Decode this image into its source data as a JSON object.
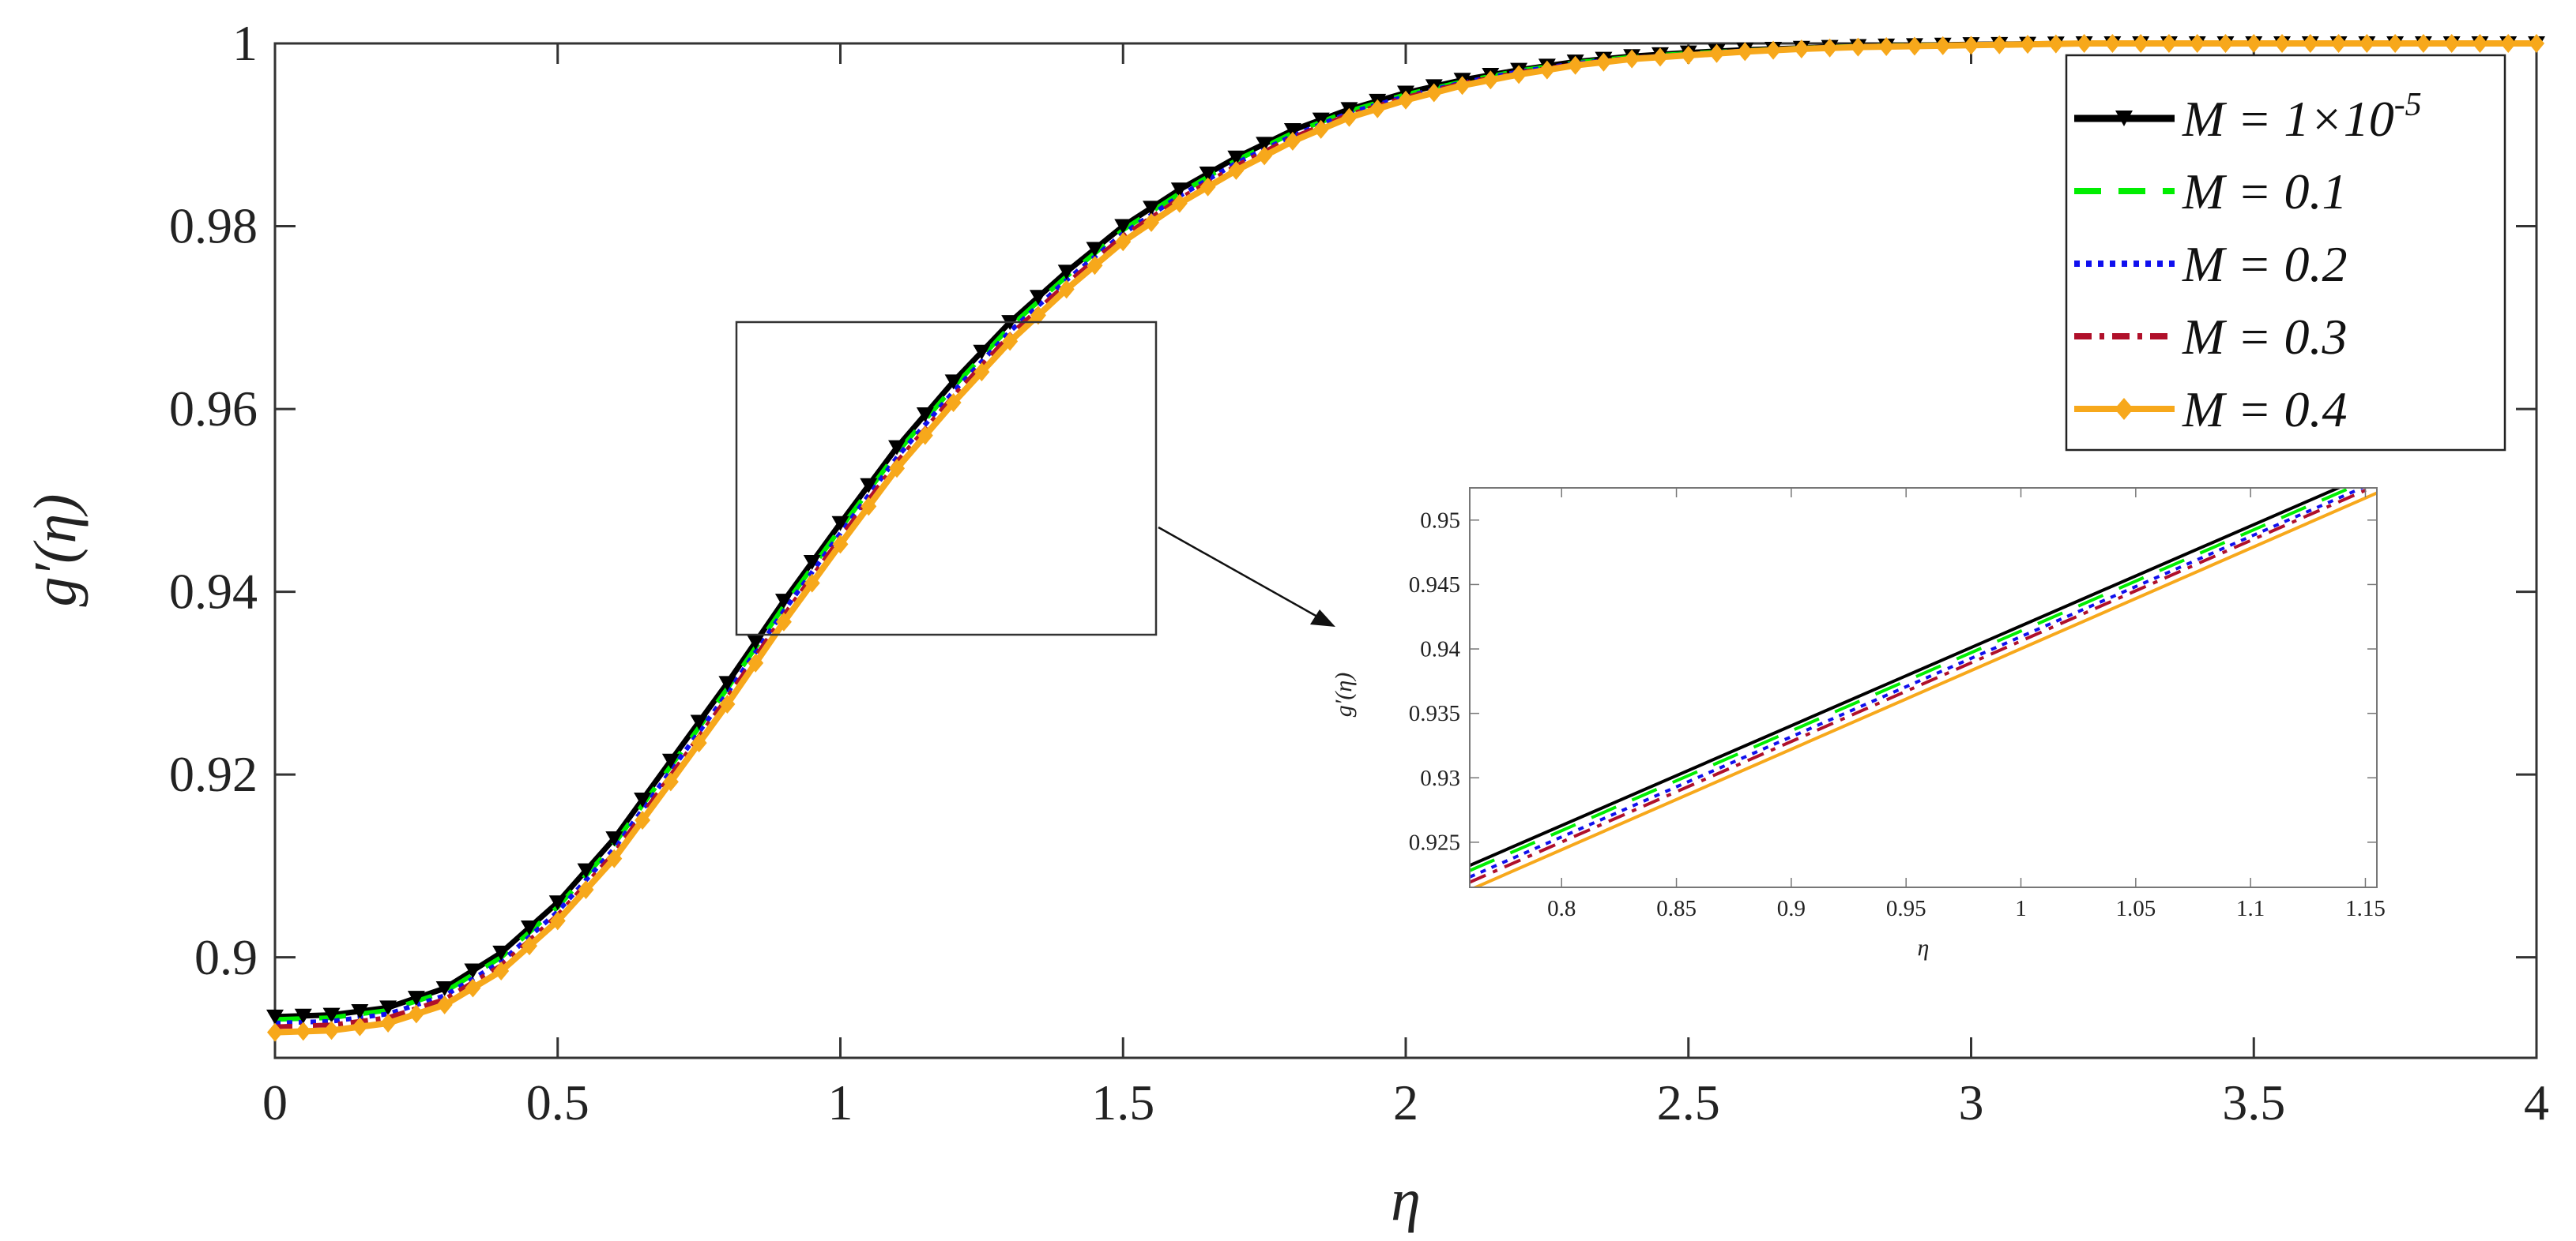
{
  "chart_data": [
    {
      "type": "line",
      "title": "",
      "xlabel": "η",
      "ylabel": "g′(η)",
      "xlim": [
        0,
        4
      ],
      "ylim": [
        0.889,
        1.0
      ],
      "x_ticks": [
        "0",
        "0.5",
        "1",
        "1.5",
        "2",
        "2.5",
        "3",
        "3.5",
        "4"
      ],
      "y_ticks": [
        "0.9",
        "0.92",
        "0.94",
        "0.96",
        "0.98",
        "1"
      ],
      "grid": false,
      "legend_position": "top-right",
      "x": [
        0,
        0.1,
        0.2,
        0.3,
        0.4,
        0.5,
        0.6,
        0.7,
        0.8,
        0.9,
        1.0,
        1.1,
        1.2,
        1.3,
        1.4,
        1.5,
        1.6,
        1.7,
        1.8,
        1.9,
        2.0,
        2.1,
        2.2,
        2.3,
        2.4,
        2.5,
        2.6,
        2.7,
        2.8,
        3.0,
        3.2,
        3.4,
        3.6,
        3.8,
        4.0
      ],
      "series": [
        {
          "name": "M = 1×10",
          "name_sup": "-5",
          "color": "#000000",
          "marker": "triangle-down",
          "values": [
            0.8935,
            0.8937,
            0.8945,
            0.8966,
            0.9005,
            0.906,
            0.913,
            0.9215,
            0.93,
            0.939,
            0.9475,
            0.9558,
            0.963,
            0.9695,
            0.975,
            0.98,
            0.984,
            0.9875,
            0.9905,
            0.9928,
            0.9946,
            0.996,
            0.9971,
            0.998,
            0.9986,
            0.999,
            0.9993,
            0.9995,
            0.9997,
            0.9999,
            1.0,
            1.0,
            1.0,
            1.0,
            1.0
          ]
        },
        {
          "name": "M = 0.1",
          "color": "#00ee00",
          "marker": "none",
          "values": [
            0.8932,
            0.8934,
            0.8942,
            0.8962,
            0.9,
            0.9055,
            0.9124,
            0.9209,
            0.9294,
            0.9384,
            0.9469,
            0.9552,
            0.9624,
            0.969,
            0.9745,
            0.9796,
            0.9836,
            0.9872,
            0.9902,
            0.9926,
            0.9944,
            0.9958,
            0.997,
            0.9979,
            0.9985,
            0.9989,
            0.9992,
            0.9995,
            0.9997,
            0.9999,
            1.0,
            1.0,
            1.0,
            1.0,
            1.0
          ]
        },
        {
          "name": "M = 0.2",
          "color": "#1010ee",
          "marker": "none",
          "values": [
            0.8928,
            0.893,
            0.8938,
            0.8958,
            0.8995,
            0.905,
            0.9119,
            0.9204,
            0.9289,
            0.9379,
            0.9464,
            0.9547,
            0.9619,
            0.9685,
            0.9741,
            0.9792,
            0.9833,
            0.9869,
            0.9899,
            0.9924,
            0.9942,
            0.9957,
            0.9969,
            0.9978,
            0.9984,
            0.9988,
            0.9992,
            0.9994,
            0.9996,
            0.9999,
            1.0,
            1.0,
            1.0,
            1.0,
            1.0
          ]
        },
        {
          "name": "M = 0.3",
          "color": "#b0102a",
          "marker": "none",
          "values": [
            0.8924,
            0.8926,
            0.8934,
            0.8954,
            0.8991,
            0.9046,
            0.9114,
            0.9199,
            0.9284,
            0.9374,
            0.9459,
            0.9542,
            0.9614,
            0.9681,
            0.9737,
            0.9789,
            0.983,
            0.9866,
            0.9897,
            0.9922,
            0.9941,
            0.9956,
            0.9968,
            0.9977,
            0.9984,
            0.9988,
            0.9991,
            0.9994,
            0.9996,
            0.9999,
            1.0,
            1.0,
            1.0,
            1.0,
            1.0
          ]
        },
        {
          "name": "M = 0.4",
          "color": "#f7a81b",
          "marker": "diamond",
          "values": [
            0.8918,
            0.892,
            0.8928,
            0.8948,
            0.8985,
            0.904,
            0.9108,
            0.9192,
            0.9277,
            0.9367,
            0.9452,
            0.9535,
            0.9607,
            0.9674,
            0.9731,
            0.9783,
            0.9825,
            0.9861,
            0.9893,
            0.9919,
            0.9938,
            0.9954,
            0.9966,
            0.9976,
            0.9983,
            0.9987,
            0.9991,
            0.9994,
            0.9996,
            0.9998,
            1.0,
            1.0,
            1.0,
            1.0,
            1.0
          ]
        }
      ]
    },
    {
      "type": "line",
      "title": "",
      "xlabel": "η",
      "ylabel": "g′(η)",
      "xlim": [
        0.76,
        1.155
      ],
      "ylim": [
        0.9215,
        0.9525
      ],
      "x_ticks": [
        "0.8",
        "0.85",
        "0.9",
        "0.95",
        "1",
        "1.05",
        "1.1",
        "1.15"
      ],
      "y_ticks": [
        "0.925",
        "0.93",
        "0.935",
        "0.94",
        "0.945",
        "0.95"
      ],
      "grid": false,
      "x": [
        0.76,
        1.155
      ],
      "series": [
        {
          "name": "M = 1×10",
          "name_sup": "-5",
          "color": "#000000",
          "values": [
            0.9232,
            0.9538
          ]
        },
        {
          "name": "M = 0.1",
          "color": "#00ee00",
          "values": [
            0.9228,
            0.9534
          ]
        },
        {
          "name": "M = 0.2",
          "color": "#1010ee",
          "values": [
            0.9223,
            0.953
          ]
        },
        {
          "name": "M = 0.3",
          "color": "#b0102a",
          "values": [
            0.9219,
            0.9527
          ]
        },
        {
          "name": "M = 0.4",
          "color": "#f7a81b",
          "values": [
            0.9213,
            0.9521
          ]
        }
      ]
    }
  ]
}
